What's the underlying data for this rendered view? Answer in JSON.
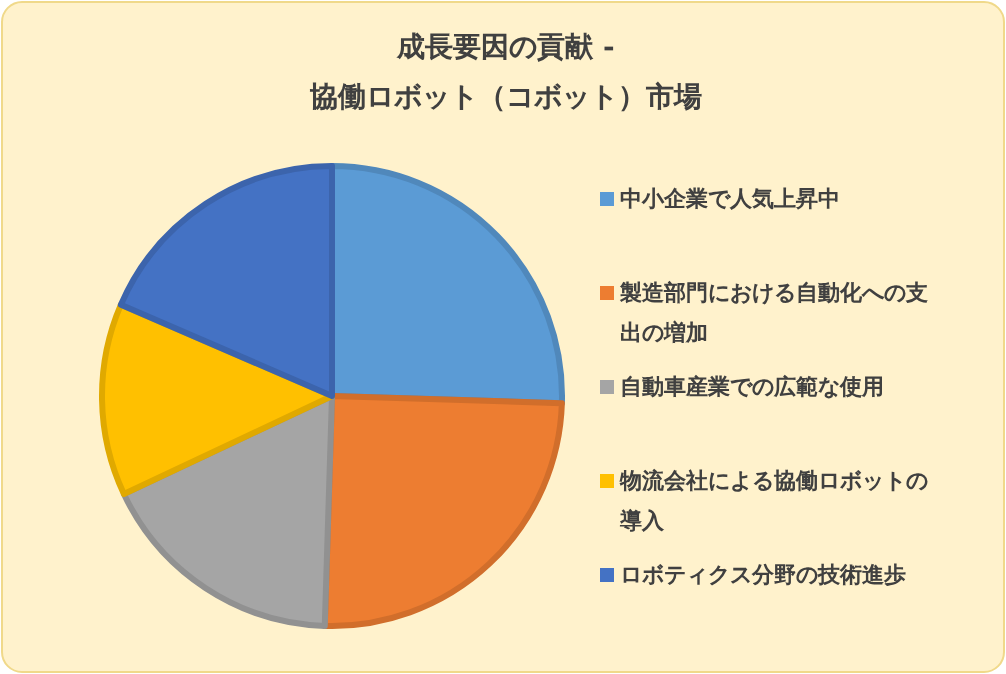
{
  "chart_data": {
    "type": "pie",
    "title": "成長要因の貢献 - 協働ロボット（コボット）市場",
    "categories": [
      "中小企業で人気上昇中",
      "製造部門における自動化への支出の増加",
      "自動車産業での広範な使用",
      "物流会社による協働ロボットの導入",
      "ロボティクス分野の技術進歩"
    ],
    "values": [
      25.5,
      25,
      17.5,
      13.5,
      18.5
    ],
    "colors": [
      "#5b9bd5",
      "#ed7d31",
      "#a5a5a5",
      "#ffc000",
      "#4472c4"
    ],
    "legend": "right"
  }
}
